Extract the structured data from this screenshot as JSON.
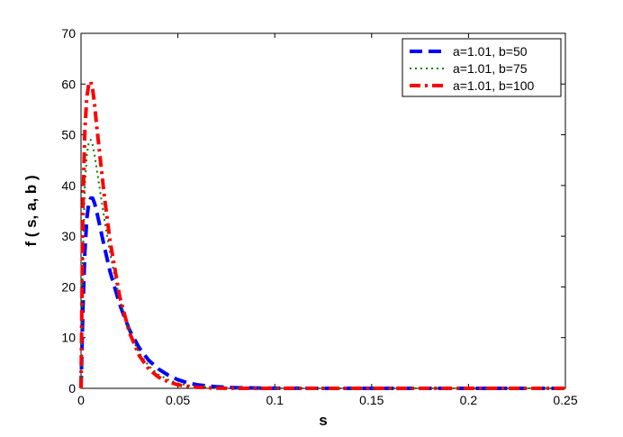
{
  "chart_data": {
    "type": "line",
    "xlabel": "s",
    "ylabel": "f ( s, a, b )",
    "xlim": [
      0,
      0.25
    ],
    "ylim": [
      0,
      70
    ],
    "x_ticks": [
      0,
      0.05,
      0.1,
      0.15,
      0.2,
      0.25
    ],
    "x_tick_labels": [
      "0",
      "0.05",
      "0.1",
      "0.15",
      "0.2",
      "0.25"
    ],
    "y_ticks": [
      0,
      10,
      20,
      30,
      40,
      50,
      60,
      70
    ],
    "y_tick_labels": [
      "0",
      "10",
      "20",
      "30",
      "40",
      "50",
      "60",
      "70"
    ],
    "grid": false,
    "legend_position": "top-right",
    "series": [
      {
        "name": "a=1.01, b=50",
        "color": "#0000ff",
        "style": "dashed",
        "points": [
          [
            0,
            0
          ],
          [
            0.001,
            16
          ],
          [
            0.002,
            27
          ],
          [
            0.003,
            33.5
          ],
          [
            0.004,
            36.5
          ],
          [
            0.005,
            37.5
          ],
          [
            0.006,
            37.5
          ],
          [
            0.007,
            36.5
          ],
          [
            0.008,
            35
          ],
          [
            0.01,
            31.5
          ],
          [
            0.012,
            28
          ],
          [
            0.015,
            23
          ],
          [
            0.02,
            16.5
          ],
          [
            0.025,
            11.5
          ],
          [
            0.03,
            8
          ],
          [
            0.035,
            5.5
          ],
          [
            0.04,
            3.8
          ],
          [
            0.045,
            2.6
          ],
          [
            0.05,
            1.7
          ],
          [
            0.055,
            1.1
          ],
          [
            0.06,
            0.7
          ],
          [
            0.07,
            0.3
          ],
          [
            0.08,
            0.12
          ],
          [
            0.1,
            0.02
          ],
          [
            0.15,
            0
          ],
          [
            0.25,
            0
          ]
        ]
      },
      {
        "name": "a=1.01, b=75",
        "color": "#008000",
        "style": "dotted",
        "points": [
          [
            0,
            0
          ],
          [
            0.001,
            27
          ],
          [
            0.002,
            40
          ],
          [
            0.003,
            46
          ],
          [
            0.004,
            48.5
          ],
          [
            0.005,
            49
          ],
          [
            0.006,
            48
          ],
          [
            0.007,
            46
          ],
          [
            0.008,
            43.5
          ],
          [
            0.01,
            38.5
          ],
          [
            0.012,
            33.5
          ],
          [
            0.015,
            26.5
          ],
          [
            0.02,
            17.5
          ],
          [
            0.025,
            11
          ],
          [
            0.03,
            7
          ],
          [
            0.035,
            4.4
          ],
          [
            0.04,
            2.7
          ],
          [
            0.045,
            1.7
          ],
          [
            0.05,
            1
          ],
          [
            0.055,
            0.6
          ],
          [
            0.06,
            0.35
          ],
          [
            0.07,
            0.1
          ],
          [
            0.08,
            0.03
          ],
          [
            0.1,
            0
          ],
          [
            0.25,
            0
          ]
        ]
      },
      {
        "name": "a=1.01, b=100",
        "color": "#ff0000",
        "style": "dashdot",
        "points": [
          [
            0,
            0
          ],
          [
            0.001,
            36
          ],
          [
            0.002,
            51
          ],
          [
            0.003,
            57.5
          ],
          [
            0.004,
            60
          ],
          [
            0.005,
            60.5
          ],
          [
            0.006,
            59
          ],
          [
            0.007,
            56
          ],
          [
            0.008,
            52
          ],
          [
            0.01,
            45
          ],
          [
            0.012,
            38
          ],
          [
            0.015,
            29
          ],
          [
            0.02,
            18
          ],
          [
            0.025,
            11
          ],
          [
            0.03,
            6.5
          ],
          [
            0.035,
            3.8
          ],
          [
            0.04,
            2.2
          ],
          [
            0.045,
            1.3
          ],
          [
            0.05,
            0.7
          ],
          [
            0.055,
            0.4
          ],
          [
            0.06,
            0.2
          ],
          [
            0.07,
            0.05
          ],
          [
            0.08,
            0.01
          ],
          [
            0.1,
            0
          ],
          [
            0.25,
            0
          ]
        ]
      }
    ]
  }
}
